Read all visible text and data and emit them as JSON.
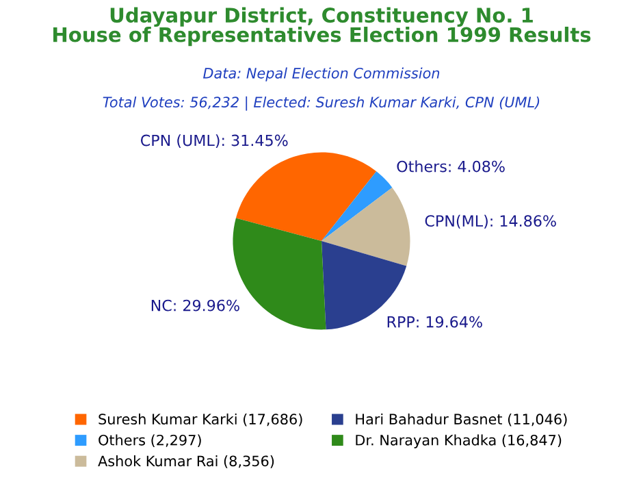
{
  "chart_data": {
    "type": "pie",
    "title": "Udayapur District, Constituency No. 1\nHouse of Representatives Election 1999 Results",
    "subtitle": "Data: Nepal Election Commission",
    "annotations": [
      "Total Votes: 56,232 | Elected: Suresh Kumar Karki, CPN (UML)"
    ],
    "categories": [
      "Suresh Kumar Karki (17,686)",
      "Others (2,297)",
      "Ashok Kumar Rai (8,356)",
      "Hari Bahadur Basnet (11,046)",
      "Dr. Narayan Khadka (16,847)"
    ],
    "values": [
      31.45,
      4.08,
      14.86,
      19.64,
      29.96
    ],
    "value_labels": [
      "CPN (UML): 31.45%",
      "Others: 4.08%",
      "CPN(ML): 14.86%",
      "RPP: 19.64%",
      "NC: 29.96%"
    ],
    "colors": [
      "#ff6600",
      "#2e9cff",
      "#cbbb9b",
      "#2a3f8f",
      "#2f8a1a"
    ],
    "legend": "bottom"
  }
}
